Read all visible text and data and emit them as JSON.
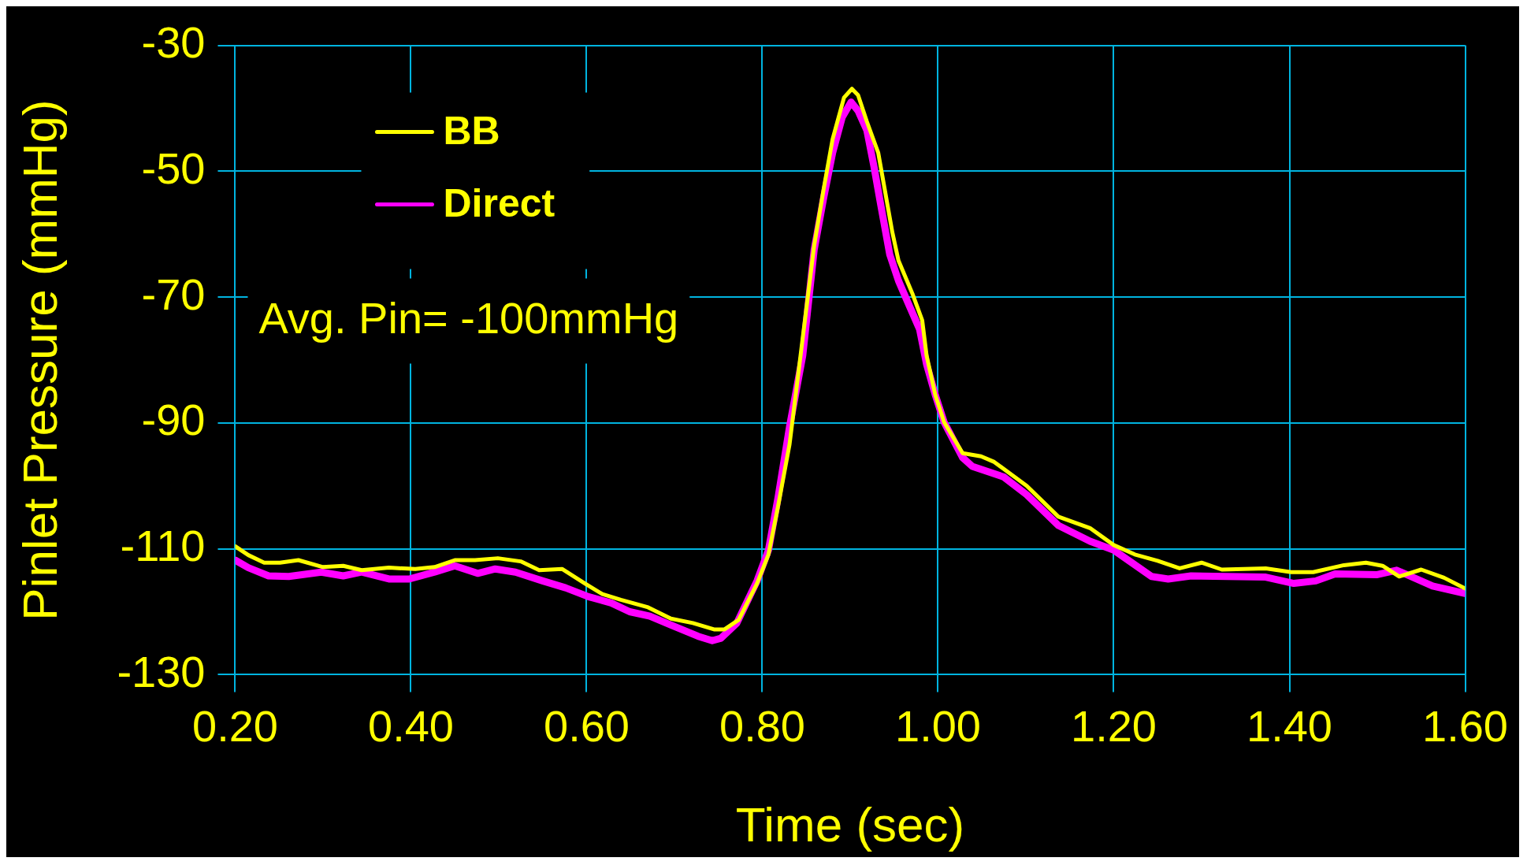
{
  "chart_data": {
    "type": "line",
    "xlabel": "Time (sec)",
    "ylabel": "Pinlet Pressure (mmHg)",
    "xlim": [
      0.2,
      1.6
    ],
    "ylim": [
      -130,
      -30
    ],
    "xticks": [
      {
        "value": 0.2,
        "label": "0.20"
      },
      {
        "value": 0.4,
        "label": "0.40"
      },
      {
        "value": 0.6,
        "label": "0.60"
      },
      {
        "value": 0.8,
        "label": "0.80"
      },
      {
        "value": 1.0,
        "label": "1.00"
      },
      {
        "value": 1.2,
        "label": "1.20"
      },
      {
        "value": 1.4,
        "label": "1.40"
      },
      {
        "value": 1.6,
        "label": "1.60"
      }
    ],
    "yticks": [
      -130,
      -110,
      -90,
      -70,
      -50,
      -30
    ],
    "grid": true,
    "legend": "top left",
    "marker": "none",
    "line_style": "solid",
    "annotations": [
      "Avg. Pin= -100mmHg"
    ],
    "series": [
      {
        "name": "BB",
        "color": "#ffff00",
        "x": [
          0.2,
          0.215,
          0.233,
          0.251,
          0.272,
          0.3,
          0.323,
          0.344,
          0.375,
          0.405,
          0.427,
          0.45,
          0.473,
          0.499,
          0.525,
          0.546,
          0.572,
          0.598,
          0.618,
          0.639,
          0.67,
          0.696,
          0.721,
          0.745,
          0.757,
          0.773,
          0.794,
          0.807,
          0.818,
          0.831,
          0.846,
          0.859,
          0.87,
          0.88,
          0.893,
          0.902,
          0.909,
          0.919,
          0.932,
          0.94,
          0.948,
          0.955,
          0.971,
          0.982,
          0.987,
          0.997,
          1.007,
          1.028,
          1.049,
          1.064,
          1.101,
          1.137,
          1.173,
          1.2,
          1.224,
          1.25,
          1.275,
          1.3,
          1.323,
          1.373,
          1.402,
          1.427,
          1.462,
          1.487,
          1.506,
          1.525,
          1.55,
          1.576,
          1.6
        ],
        "values": [
          -109.6,
          -111,
          -112.2,
          -112.2,
          -111.8,
          -112.9,
          -112.7,
          -113.4,
          -113,
          -113.2,
          -112.9,
          -111.8,
          -111.8,
          -111.5,
          -112,
          -113.4,
          -113.2,
          -115.5,
          -117.2,
          -118.1,
          -119.3,
          -121.1,
          -121.8,
          -122.8,
          -122.8,
          -121.3,
          -115.5,
          -110.9,
          -103.2,
          -93.4,
          -76.5,
          -61.8,
          -52.7,
          -44.9,
          -38.3,
          -36.9,
          -37.9,
          -42.1,
          -47.1,
          -53.4,
          -59.7,
          -64.2,
          -69.5,
          -73.7,
          -79.3,
          -85.6,
          -89.9,
          -94.8,
          -95.3,
          -96.2,
          -100,
          -104.9,
          -106.7,
          -109.4,
          -110.9,
          -111.9,
          -113.1,
          -112.2,
          -113.3,
          -113.1,
          -113.7,
          -113.7,
          -112.6,
          -112.2,
          -112.7,
          -114.4,
          -113.3,
          -114.6,
          -116.3
        ]
      },
      {
        "name": "Direct",
        "color": "#ff00ff",
        "x": [
          0.2,
          0.215,
          0.238,
          0.261,
          0.298,
          0.323,
          0.344,
          0.375,
          0.398,
          0.427,
          0.45,
          0.476,
          0.496,
          0.519,
          0.55,
          0.576,
          0.602,
          0.628,
          0.649,
          0.672,
          0.696,
          0.727,
          0.743,
          0.753,
          0.771,
          0.794,
          0.807,
          0.818,
          0.831,
          0.846,
          0.859,
          0.87,
          0.88,
          0.891,
          0.901,
          0.909,
          0.919,
          0.927,
          0.935,
          0.945,
          0.955,
          0.968,
          0.979,
          0.987,
          0.997,
          1.007,
          1.028,
          1.039,
          1.075,
          1.101,
          1.137,
          1.173,
          1.2,
          1.243,
          1.262,
          1.288,
          1.373,
          1.405,
          1.43,
          1.452,
          1.5,
          1.522,
          1.563,
          1.6
        ],
        "values": [
          -111.8,
          -113,
          -114.3,
          -114.4,
          -113.7,
          -114.3,
          -113.7,
          -114.8,
          -114.8,
          -113.7,
          -112.7,
          -113.9,
          -113.2,
          -113.7,
          -115.1,
          -116.2,
          -117.6,
          -118.6,
          -120,
          -120.7,
          -122.1,
          -123.9,
          -124.6,
          -124.2,
          -121.8,
          -115.1,
          -110.2,
          -101.8,
          -90.6,
          -79.3,
          -62.5,
          -54.1,
          -47.1,
          -41.4,
          -39,
          -40.4,
          -43.5,
          -49.2,
          -55.5,
          -63.2,
          -67.4,
          -71.6,
          -75.1,
          -80.7,
          -85.6,
          -89.9,
          -95.5,
          -96.9,
          -98.6,
          -101.4,
          -106.3,
          -108.8,
          -110.2,
          -114.4,
          -114.8,
          -114.3,
          -114.5,
          -115.5,
          -115.1,
          -114,
          -114.1,
          -113.4,
          -115.9,
          -117.1
        ]
      }
    ]
  }
}
